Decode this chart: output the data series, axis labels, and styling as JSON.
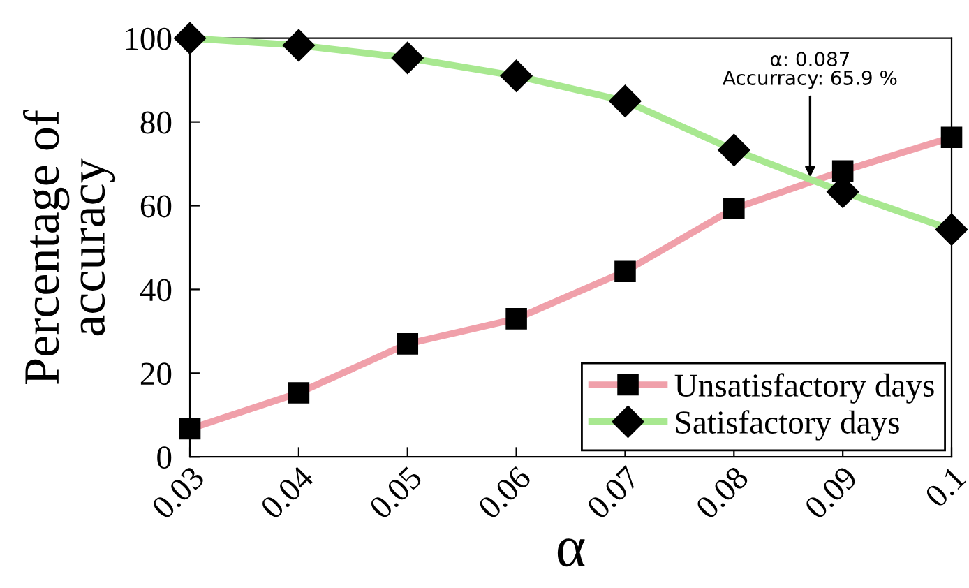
{
  "chart_data": {
    "type": "line",
    "xlabel": "α",
    "ylabel": "Percentage of\naccuracy",
    "x": [
      0.03,
      0.04,
      0.05,
      0.06,
      0.07,
      0.08,
      0.09,
      0.1
    ],
    "series": [
      {
        "name": "Unsatisfactory days",
        "color": "#f0a0aa",
        "marker": "square",
        "values": [
          6.7,
          15.3,
          27,
          33,
          44.3,
          59.3,
          68.3,
          76.3
        ]
      },
      {
        "name": "Satisfactory days",
        "color": "#a8e890",
        "marker": "diamond",
        "values": [
          100,
          98.3,
          95.3,
          91,
          85,
          73.3,
          63.3,
          54.3
        ]
      }
    ],
    "xlim": [
      0.03,
      0.1
    ],
    "xticks": [
      0.03,
      0.04,
      0.05,
      0.06,
      0.07,
      0.08,
      0.09,
      0.1
    ],
    "ylim": [
      0,
      100
    ],
    "yticks": [
      0,
      20,
      40,
      60,
      80,
      100
    ],
    "annotations": [
      {
        "text": "α: 0.087\nAccurracy: 65.9 %",
        "x": 0.087,
        "y": 65.9
      }
    ],
    "grid": false,
    "legend": "bottom right",
    "line_style": "solid"
  }
}
